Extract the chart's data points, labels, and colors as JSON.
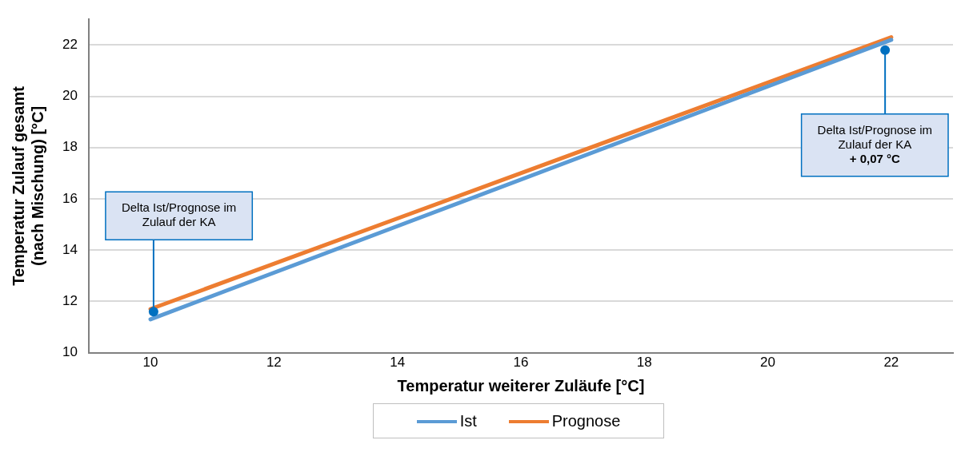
{
  "chart_data": {
    "type": "line",
    "xlabel": "Temperatur weiterer Zuläufe [°C]",
    "ylabel": "Temperatur Zulauf gesamt\n(nach Mischung) [°C]",
    "xlim": [
      9,
      23
    ],
    "xticks": [
      10,
      12,
      14,
      16,
      18,
      20,
      22
    ],
    "ylim": [
      10,
      23
    ],
    "yticks": [
      10,
      12,
      14,
      16,
      18,
      20,
      22
    ],
    "x": [
      10,
      22
    ],
    "grid": "y",
    "legend": "bottom",
    "marker": "none",
    "line_style": "solid",
    "series": [
      {
        "name": "Ist",
        "color": "#5b9bd5",
        "values": [
          11.3,
          22.2
        ]
      },
      {
        "name": "Prognose",
        "color": "#ed7d31",
        "values": [
          11.7,
          22.3
        ]
      }
    ],
    "annotations": [
      {
        "text": "Delta Ist/Prognose im\nZulauf der KA",
        "x": 10.05,
        "y": 11.6
      },
      {
        "text": "Delta Ist/Prognose im\nZulauf der KA\n+ 0,07 °C",
        "x": 21.9,
        "y": 21.8
      }
    ]
  }
}
